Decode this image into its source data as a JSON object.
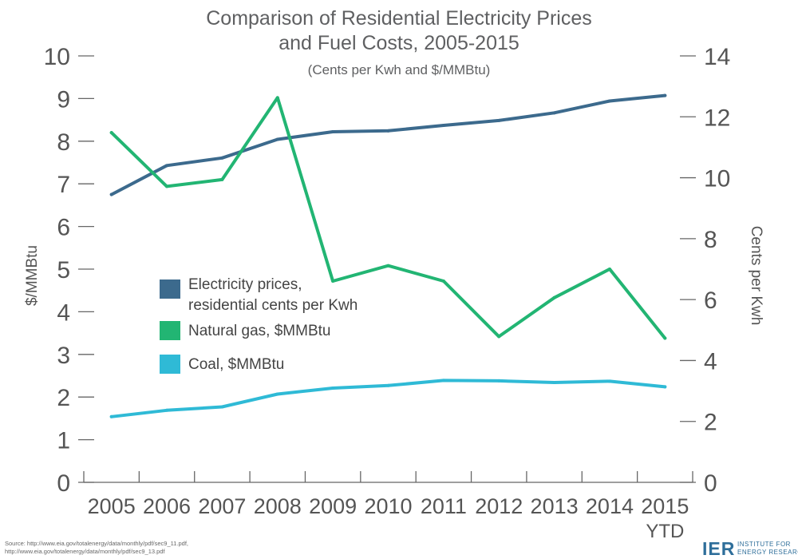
{
  "chart_data": {
    "type": "line",
    "title_line1": "Comparison of Residential Electricity Prices",
    "title_line2": "and Fuel Costs, 2005-2015",
    "subtitle": "(Cents per Kwh and $/MMBtu)",
    "left_axis_label": "$/MMBtu",
    "right_axis_label": "Cents per Kwh",
    "x": [
      "2005",
      "2006",
      "2007",
      "2008",
      "2009",
      "2010",
      "2011",
      "2012",
      "2013",
      "2014",
      "2015"
    ],
    "x_last_sublabel": "YTD",
    "left_ylim": [
      0,
      10
    ],
    "left_ticks": [
      0,
      1,
      2,
      3,
      4,
      5,
      6,
      7,
      8,
      9,
      10
    ],
    "right_ylim": [
      0,
      14
    ],
    "right_ticks": [
      0,
      2,
      4,
      6,
      8,
      10,
      12,
      14
    ],
    "grid": false,
    "legend_position": "center-left",
    "series": [
      {
        "name": "Electricity prices, residential cents per Kwh",
        "legend_lines": [
          "Electricity prices,",
          "residential cents per Kwh"
        ],
        "axis": "right",
        "color": "#3c6a8d",
        "values": [
          9.45,
          10.4,
          10.65,
          11.26,
          11.51,
          11.54,
          11.72,
          11.88,
          12.13,
          12.52,
          12.7
        ]
      },
      {
        "name": "Natural gas, $MMBtu",
        "legend_lines": [
          "Natural gas, $MMBtu"
        ],
        "axis": "left",
        "color": "#22b573",
        "values": [
          8.2,
          6.94,
          7.1,
          9.02,
          4.72,
          5.08,
          4.72,
          3.42,
          4.33,
          5.0,
          3.38
        ]
      },
      {
        "name": "Coal, $MMBtu",
        "legend_lines": [
          "Coal, $MMBtu"
        ],
        "axis": "left",
        "color": "#2fbad6",
        "values": [
          1.54,
          1.69,
          1.77,
          2.07,
          2.21,
          2.27,
          2.39,
          2.38,
          2.34,
          2.37,
          2.24
        ]
      }
    ]
  },
  "source": {
    "line1": "Source: http://www.eia.gov/totalenergy/data/monthly/pdf/sec9_11.pdf,",
    "line2": "http://www.eia.gov/totalenergy/data/monthly/pdf/sec9_13.pdf"
  },
  "logo": {
    "abbr": "IER",
    "line1": "INSTITUTE FOR",
    "line2": "ENERGY RESEARCH",
    "color": "#2e6e9a"
  }
}
